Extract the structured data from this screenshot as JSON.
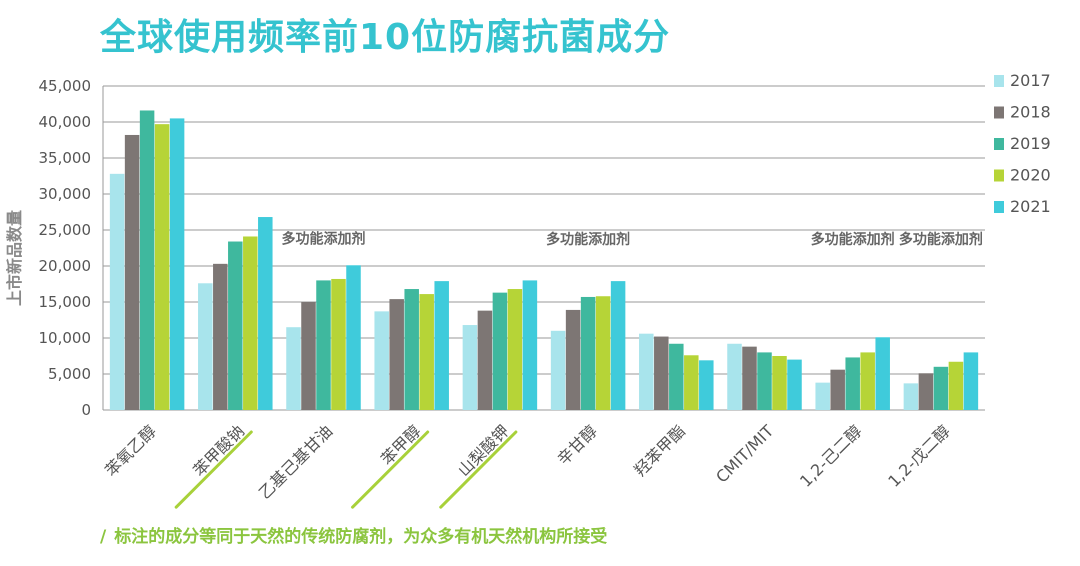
{
  "title": "全球使用频率前10位防腐抗菌成分",
  "footnote": "标注的成分等同于天然的传统防腐剂，为众多有机天然机构所接受",
  "footnote_mark": "/",
  "chart_data": {
    "type": "bar",
    "title": "全球使用频率前10位防腐抗菌成分",
    "ylabel": "上市新品数量",
    "xlabel": "",
    "ylim": [
      0,
      45000
    ],
    "yticks": [
      0,
      5000,
      10000,
      15000,
      20000,
      25000,
      30000,
      35000,
      40000,
      45000
    ],
    "ytick_labels": [
      "0",
      "5,000",
      "10,000",
      "15,000",
      "20,000",
      "25,000",
      "30,000",
      "35,000",
      "40,000",
      "45,000"
    ],
    "grid": true,
    "legend_position": "right",
    "categories": [
      "苯氧乙醇",
      "苯甲酸钠",
      "乙基己基甘油",
      "苯甲醇",
      "山梨酸钾",
      "辛甘醇",
      "羟苯甲酯",
      "CMIT/MIT",
      "1,2-己二醇",
      "1,2-戊二醇"
    ],
    "underlined_categories": [
      "苯甲酸钠",
      "苯甲醇",
      "山梨酸钾"
    ],
    "annotations": [
      {
        "category": "乙基己基甘油",
        "text": "多功能添加剂"
      },
      {
        "category": "辛甘醇",
        "text": "多功能添加剂"
      },
      {
        "category": "1,2-己二醇",
        "text": "多功能添加剂"
      },
      {
        "category": "1,2-戊二醇",
        "text": "多功能添加剂"
      }
    ],
    "series": [
      {
        "name": "2017",
        "color": "#a8e4ec",
        "values": [
          32800,
          17600,
          11500,
          13700,
          11800,
          11000,
          10600,
          9200,
          3800,
          3700
        ]
      },
      {
        "name": "2018",
        "color": "#7d7674",
        "values": [
          38200,
          20300,
          15000,
          15400,
          13800,
          13900,
          10200,
          8800,
          5600,
          5100
        ]
      },
      {
        "name": "2019",
        "color": "#3fb89e",
        "values": [
          41600,
          23400,
          18000,
          16800,
          16300,
          15700,
          9200,
          8000,
          7300,
          6000
        ]
      },
      {
        "name": "2020",
        "color": "#b6d437",
        "values": [
          39700,
          24100,
          18200,
          16100,
          16800,
          15800,
          7600,
          7500,
          8000,
          6700
        ]
      },
      {
        "name": "2021",
        "color": "#3fcbdb",
        "values": [
          40500,
          26800,
          20100,
          17900,
          18000,
          17900,
          6900,
          7000,
          10100,
          8000
        ]
      }
    ]
  }
}
